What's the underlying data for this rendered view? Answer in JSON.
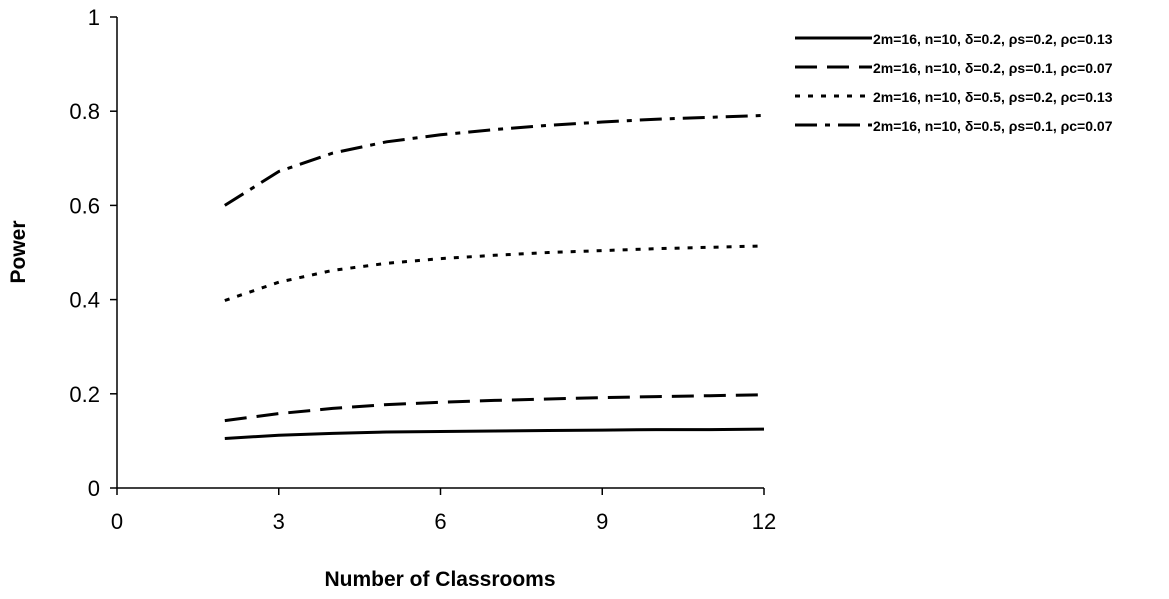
{
  "chart_data": {
    "type": "line",
    "title": "",
    "xlabel": "Number of Classrooms",
    "ylabel": "Power",
    "xlim": [
      0,
      12
    ],
    "ylim": [
      0,
      1
    ],
    "xticks": [
      0,
      3,
      6,
      9,
      12
    ],
    "xtick_labels": [
      "0",
      "3",
      "6",
      "9",
      "12"
    ],
    "yticks": [
      0,
      0.2,
      0.4,
      0.6,
      0.8,
      1
    ],
    "ytick_labels": [
      "0",
      "0.2",
      "0.4",
      "0.6",
      "0.8",
      "1"
    ],
    "grid": false,
    "legend_position": "top-right",
    "x": [
      2,
      3,
      4,
      5,
      6,
      7,
      8,
      9,
      10,
      11,
      12
    ],
    "series": [
      {
        "name": "2m=16, n=10, δ=0.2, ρs=0.2, ρc=0.13",
        "style": "solid",
        "values": [
          0.105,
          0.112,
          0.116,
          0.119,
          0.12,
          0.121,
          0.122,
          0.123,
          0.124,
          0.124,
          0.125
        ]
      },
      {
        "name": "2m=16, n=10, δ=0.2, ρs=0.1, ρc=0.07",
        "style": "dashed",
        "values": [
          0.143,
          0.158,
          0.169,
          0.177,
          0.182,
          0.186,
          0.189,
          0.192,
          0.194,
          0.196,
          0.198
        ]
      },
      {
        "name": "2m=16, n=10, δ=0.5, ρs=0.2, ρc=0.13",
        "style": "dotted",
        "values": [
          0.398,
          0.437,
          0.462,
          0.477,
          0.487,
          0.494,
          0.5,
          0.504,
          0.508,
          0.511,
          0.514
        ]
      },
      {
        "name": "2m=16, n=10, δ=0.5, ρs=0.1, ρc=0.07",
        "style": "dashdot",
        "values": [
          0.6,
          0.672,
          0.711,
          0.735,
          0.75,
          0.761,
          0.77,
          0.777,
          0.783,
          0.787,
          0.791
        ]
      }
    ],
    "colors": {
      "line": "#000000",
      "background": "#ffffff"
    }
  }
}
